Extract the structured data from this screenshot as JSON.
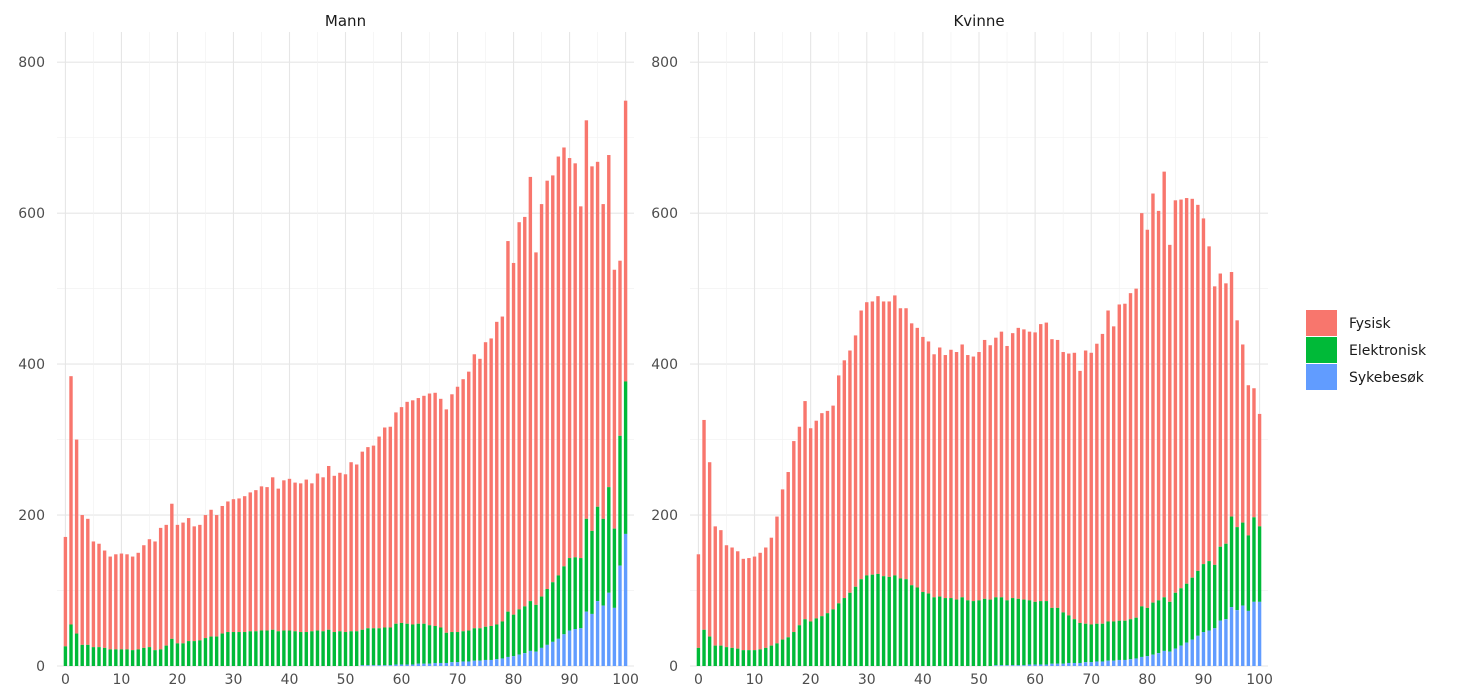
{
  "chart_data": {
    "type": "bar",
    "stacked": true,
    "facets": [
      "Mann",
      "Kvinne"
    ],
    "x_ticks": [
      0,
      10,
      20,
      30,
      40,
      50,
      60,
      70,
      80,
      90,
      100
    ],
    "y_ticks": [
      0,
      200,
      400,
      600,
      800
    ],
    "xlim": [
      -1.5,
      101.5
    ],
    "ylim": [
      0,
      840
    ],
    "grid": true,
    "legend_position": "right",
    "legend": [
      "Fysisk",
      "Elektronisk",
      "Sykebesøk"
    ],
    "colors": {
      "Fysisk": "#F8766D",
      "Elektronisk": "#00BA38",
      "Sykebesøk": "#619CFF"
    },
    "panels": [
      {
        "name": "Mann",
        "totals": [
          171,
          384,
          300,
          200,
          195,
          165,
          162,
          153,
          145,
          148,
          149,
          148,
          145,
          150,
          160,
          168,
          165,
          183,
          187,
          215,
          187,
          190,
          196,
          185,
          187,
          200,
          207,
          200,
          212,
          218,
          221,
          222,
          225,
          230,
          233,
          238,
          237,
          250,
          235,
          246,
          248,
          243,
          242,
          247,
          242,
          255,
          250,
          265,
          252,
          256,
          254,
          270,
          267,
          284,
          290,
          292,
          304,
          316,
          317,
          336,
          343,
          350,
          352,
          355,
          358,
          361,
          362,
          354,
          340,
          360,
          370,
          380,
          390,
          413,
          407,
          429,
          434,
          456,
          463,
          563,
          534,
          588,
          595,
          648,
          548,
          612,
          643,
          650,
          675,
          687,
          673,
          666,
          609,
          723,
          662,
          668,
          612,
          677,
          525,
          537,
          749
        ],
        "elektronisk": [
          26,
          55,
          43,
          28,
          28,
          25,
          25,
          24,
          22,
          22,
          22,
          22,
          21,
          22,
          24,
          25,
          21,
          22,
          27,
          36,
          30,
          30,
          33,
          33,
          34,
          37,
          39,
          39,
          43,
          45,
          45,
          45,
          45,
          46,
          46,
          47,
          47,
          48,
          46,
          47,
          47,
          46,
          45,
          45,
          46,
          47,
          46,
          48,
          45,
          46,
          45,
          46,
          46,
          47,
          49,
          49,
          49,
          50,
          50,
          54,
          55,
          54,
          53,
          53,
          53,
          51,
          49,
          47,
          40,
          40,
          40,
          40,
          41,
          43,
          43,
          44,
          45,
          46,
          49,
          60,
          55,
          60,
          62,
          66,
          62,
          68,
          74,
          79,
          84,
          90,
          96,
          95,
          93,
          123,
          110,
          125,
          115,
          140,
          105,
          172,
          202
        ],
        "sykebesok": [
          0,
          0,
          0,
          0,
          0,
          0,
          0,
          0,
          0,
          0,
          0,
          0,
          0,
          0,
          0,
          0,
          0,
          0,
          0,
          0,
          0,
          0,
          0,
          0,
          0,
          0,
          0,
          0,
          0,
          0,
          0,
          0,
          0,
          0,
          0,
          0,
          0,
          0,
          0,
          0,
          0,
          0,
          0,
          0,
          0,
          0,
          0,
          0,
          0,
          0,
          0,
          0,
          0,
          1,
          1,
          1,
          1,
          1,
          1,
          2,
          2,
          2,
          2,
          3,
          3,
          3,
          4,
          4,
          4,
          5,
          5,
          6,
          6,
          7,
          7,
          8,
          8,
          9,
          10,
          12,
          13,
          15,
          17,
          20,
          19,
          24,
          28,
          32,
          36,
          42,
          47,
          49,
          50,
          72,
          69,
          86,
          80,
          97,
          77,
          133,
          175
        ]
      },
      {
        "name": "Kvinne",
        "totals": [
          148,
          326,
          270,
          185,
          180,
          160,
          157,
          152,
          142,
          143,
          145,
          150,
          157,
          170,
          198,
          234,
          257,
          298,
          317,
          351,
          315,
          325,
          335,
          338,
          345,
          385,
          405,
          418,
          438,
          471,
          482,
          483,
          490,
          483,
          483,
          491,
          474,
          474,
          454,
          448,
          436,
          430,
          413,
          422,
          412,
          419,
          416,
          426,
          412,
          410,
          416,
          432,
          425,
          435,
          443,
          424,
          441,
          448,
          446,
          443,
          442,
          453,
          455,
          433,
          432,
          416,
          414,
          415,
          391,
          418,
          415,
          427,
          440,
          471,
          450,
          479,
          480,
          494,
          500,
          600,
          578,
          626,
          603,
          655,
          558,
          617,
          618,
          620,
          619,
          611,
          593,
          556,
          503,
          520,
          507,
          522,
          458,
          426,
          372,
          368,
          334
        ],
        "elektronisk": [
          24,
          48,
          39,
          27,
          27,
          25,
          24,
          23,
          21,
          21,
          21,
          22,
          24,
          27,
          30,
          35,
          38,
          45,
          54,
          62,
          59,
          63,
          66,
          70,
          75,
          83,
          90,
          97,
          105,
          115,
          120,
          121,
          122,
          119,
          118,
          120,
          116,
          115,
          107,
          104,
          98,
          96,
          91,
          92,
          90,
          90,
          88,
          91,
          87,
          86,
          87,
          89,
          88,
          90,
          90,
          86,
          89,
          88,
          87,
          85,
          83,
          84,
          84,
          74,
          74,
          68,
          63,
          58,
          53,
          51,
          50,
          50,
          50,
          52,
          52,
          52,
          52,
          53,
          54,
          67,
          64,
          69,
          70,
          71,
          66,
          74,
          76,
          78,
          82,
          86,
          90,
          92,
          84,
          98,
          100,
          120,
          110,
          110,
          100,
          112,
          100
        ],
        "sykebesok": [
          0,
          0,
          0,
          0,
          0,
          0,
          0,
          0,
          0,
          0,
          0,
          0,
          0,
          0,
          0,
          0,
          0,
          0,
          0,
          0,
          0,
          0,
          0,
          0,
          0,
          0,
          0,
          0,
          0,
          0,
          0,
          0,
          0,
          0,
          0,
          0,
          0,
          0,
          0,
          0,
          0,
          0,
          0,
          0,
          0,
          0,
          0,
          0,
          0,
          0,
          0,
          0,
          0,
          1,
          1,
          1,
          1,
          1,
          1,
          2,
          2,
          2,
          2,
          3,
          3,
          3,
          4,
          4,
          4,
          5,
          5,
          6,
          6,
          7,
          7,
          8,
          8,
          9,
          10,
          12,
          13,
          15,
          17,
          20,
          19,
          23,
          27,
          31,
          35,
          40,
          45,
          47,
          50,
          60,
          62,
          78,
          74,
          80,
          73,
          85,
          85
        ]
      }
    ]
  }
}
